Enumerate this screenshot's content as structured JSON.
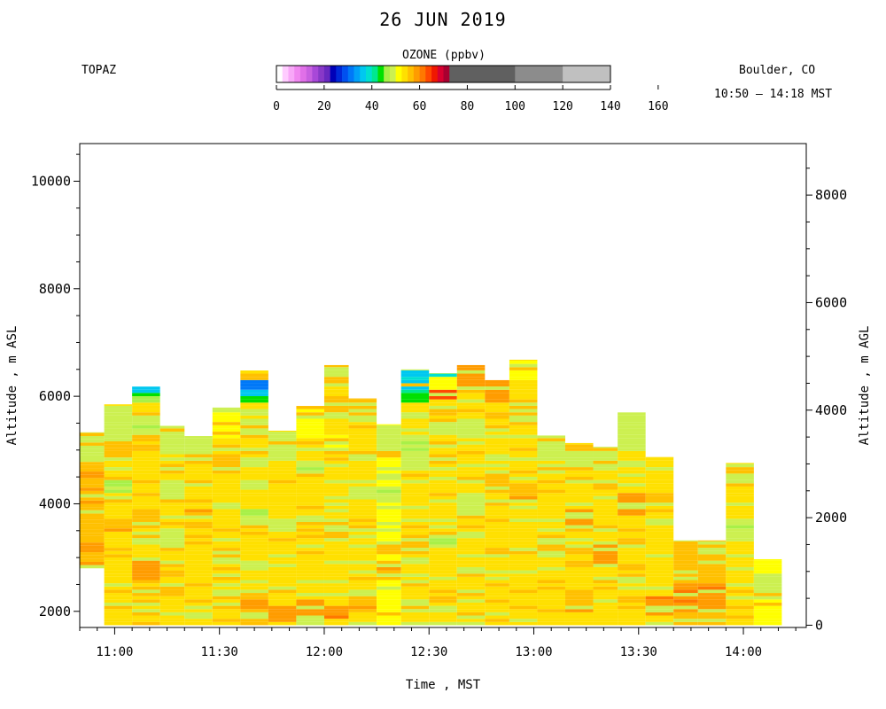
{
  "header": {
    "title": "26 JUN 2019",
    "site": "TOPAZ",
    "location": "Boulder, CO",
    "time_range": "10:50 – 14:18 MST"
  },
  "colorbar": {
    "title": "OZONE (ppbv)",
    "ticks": [
      "0",
      "20",
      "40",
      "60",
      "80",
      "100",
      "120",
      "140",
      "160"
    ],
    "bins": [
      {
        "lo": 0,
        "hi": 2.5,
        "color": "#ffffff"
      },
      {
        "lo": 2.5,
        "hi": 5,
        "color": "#ffccff"
      },
      {
        "lo": 5,
        "hi": 7.5,
        "color": "#f8a8f8"
      },
      {
        "lo": 7.5,
        "hi": 10,
        "color": "#f088f0"
      },
      {
        "lo": 10,
        "hi": 12.5,
        "color": "#e070e8"
      },
      {
        "lo": 12.5,
        "hi": 15,
        "color": "#c860e0"
      },
      {
        "lo": 15,
        "hi": 17.5,
        "color": "#a848d8"
      },
      {
        "lo": 17.5,
        "hi": 20,
        "color": "#8838c8"
      },
      {
        "lo": 20,
        "hi": 22.5,
        "color": "#6828c0"
      },
      {
        "lo": 22.5,
        "hi": 25,
        "color": "#0000b8"
      },
      {
        "lo": 25,
        "hi": 27.5,
        "color": "#0028d8"
      },
      {
        "lo": 27.5,
        "hi": 30,
        "color": "#0050f0"
      },
      {
        "lo": 30,
        "hi": 32.5,
        "color": "#0078f8"
      },
      {
        "lo": 32.5,
        "hi": 35,
        "color": "#00a0f8"
      },
      {
        "lo": 35,
        "hi": 37.5,
        "color": "#00c8f0"
      },
      {
        "lo": 37.5,
        "hi": 40,
        "color": "#00e0d0"
      },
      {
        "lo": 40,
        "hi": 42.5,
        "color": "#00e890"
      },
      {
        "lo": 42.5,
        "hi": 45,
        "color": "#00e000"
      },
      {
        "lo": 45,
        "hi": 47.5,
        "color": "#a8f048"
      },
      {
        "lo": 47.5,
        "hi": 50,
        "color": "#ccf050"
      },
      {
        "lo": 50,
        "hi": 52.5,
        "color": "#ffff00"
      },
      {
        "lo": 52.5,
        "hi": 55,
        "color": "#ffe000"
      },
      {
        "lo": 55,
        "hi": 57.5,
        "color": "#ffc000"
      },
      {
        "lo": 57.5,
        "hi": 60,
        "color": "#ff9c00"
      },
      {
        "lo": 60,
        "hi": 62.5,
        "color": "#ff7800"
      },
      {
        "lo": 62.5,
        "hi": 65,
        "color": "#ff4800"
      },
      {
        "lo": 65,
        "hi": 67.5,
        "color": "#f01800"
      },
      {
        "lo": 67.5,
        "hi": 70,
        "color": "#d80030"
      },
      {
        "lo": 70,
        "hi": 72.5,
        "color": "#a80030"
      },
      {
        "lo": 72.5,
        "hi": 100,
        "color": "#606060"
      },
      {
        "lo": 100,
        "hi": 120,
        "color": "#8c8c8c"
      },
      {
        "lo": 120,
        "hi": 140,
        "color": "#c0c0c0"
      }
    ]
  },
  "chart_data": {
    "type": "heatmap",
    "title": "26 JUN 2019",
    "xlabel": "Time , MST",
    "ylabel_left": "Altitude , m ASL",
    "ylabel_right": "Altitude , m AGL",
    "x_ticks": [
      "11:00",
      "11:30",
      "12:00",
      "12:30",
      "13:00",
      "13:30",
      "14:00"
    ],
    "x_tick_values": [
      "11:00",
      "11:30",
      "12:00",
      "12:30",
      "13:00",
      "13:30",
      "14:00"
    ],
    "y_left_ticks": [
      2000,
      4000,
      6000,
      8000,
      10000
    ],
    "y_right_ticks": [
      0,
      2000,
      4000,
      6000,
      8000
    ],
    "xlim": [
      "10:50",
      "14:18"
    ],
    "ylim_asl": [
      1700,
      10700
    ],
    "surface_altitude_asl": 1742,
    "profiles": [
      {
        "start": "10:50",
        "end": "10:57",
        "bottom": 2800,
        "top": 5330,
        "base_ozone": 55.5,
        "layers": [
          [
            4800,
            5330,
            49
          ],
          [
            3700,
            3850,
            57
          ],
          [
            3100,
            3300,
            57.5
          ]
        ]
      },
      {
        "start": "10:57",
        "end": "11:05",
        "bottom": 1742,
        "top": 5850,
        "base_ozone": 53,
        "layers": [
          [
            4900,
            5850,
            49
          ],
          [
            4200,
            4500,
            48.5
          ],
          [
            3500,
            3700,
            56
          ]
        ]
      },
      {
        "start": "11:05",
        "end": "11:13",
        "bottom": 1742,
        "top": 6180,
        "base_ozone": 52.5,
        "layers": [
          [
            6080,
            6180,
            37
          ],
          [
            5980,
            6080,
            43.5
          ],
          [
            5900,
            5980,
            47
          ],
          [
            5200,
            5700,
            48.5
          ],
          [
            2600,
            3000,
            58
          ]
        ]
      },
      {
        "start": "11:13",
        "end": "11:20",
        "bottom": 1742,
        "top": 5450,
        "base_ozone": 53,
        "layers": [
          [
            4900,
            5450,
            49
          ],
          [
            4100,
            4400,
            48
          ],
          [
            2300,
            2500,
            56.5
          ]
        ]
      },
      {
        "start": "11:20",
        "end": "11:28",
        "bottom": 1742,
        "top": 5260,
        "base_ozone": 52.5,
        "layers": [
          [
            4800,
            5260,
            49
          ],
          [
            3700,
            3900,
            56
          ]
        ]
      },
      {
        "start": "11:28",
        "end": "11:36",
        "bottom": 1742,
        "top": 5790,
        "base_ozone": 53,
        "layers": [
          [
            5200,
            5790,
            51
          ],
          [
            4600,
            4900,
            57
          ],
          [
            2900,
            3200,
            57
          ]
        ]
      },
      {
        "start": "11:36",
        "end": "11:44",
        "bottom": 1742,
        "top": 6480,
        "base_ozone": 53,
        "layers": [
          [
            6320,
            6400,
            34
          ],
          [
            6150,
            6320,
            31
          ],
          [
            6020,
            6150,
            35
          ],
          [
            5900,
            6020,
            43
          ],
          [
            5200,
            5600,
            49
          ],
          [
            3600,
            3900,
            48
          ],
          [
            2000,
            2400,
            57
          ]
        ]
      },
      {
        "start": "11:44",
        "end": "11:52",
        "bottom": 1742,
        "top": 5360,
        "base_ozone": 53,
        "layers": [
          [
            4800,
            5360,
            49
          ],
          [
            3500,
            3700,
            48.5
          ],
          [
            1800,
            2100,
            57.5
          ]
        ]
      },
      {
        "start": "11:52",
        "end": "12:00",
        "bottom": 1742,
        "top": 5820,
        "base_ozone": 53,
        "layers": [
          [
            5200,
            5820,
            50
          ],
          [
            4500,
            4800,
            48.5
          ],
          [
            1900,
            2200,
            57.5
          ]
        ]
      },
      {
        "start": "12:00",
        "end": "12:07",
        "bottom": 1742,
        "top": 6580,
        "base_ozone": 52.5,
        "layers": [
          [
            6350,
            6580,
            49
          ],
          [
            5700,
            6000,
            56.5
          ],
          [
            5000,
            5300,
            50
          ],
          [
            3300,
            3700,
            49
          ],
          [
            1850,
            2100,
            58
          ]
        ]
      },
      {
        "start": "12:07",
        "end": "12:15",
        "bottom": 1742,
        "top": 5960,
        "base_ozone": 53,
        "layers": [
          [
            5500,
            5960,
            49
          ],
          [
            4800,
            5000,
            49
          ],
          [
            2000,
            2400,
            57
          ]
        ]
      },
      {
        "start": "12:15",
        "end": "12:22",
        "bottom": 1742,
        "top": 5480,
        "base_ozone": 52,
        "layers": [
          [
            4900,
            5480,
            49
          ],
          [
            4000,
            4300,
            48.5
          ],
          [
            2600,
            2900,
            56
          ]
        ]
      },
      {
        "start": "12:22",
        "end": "12:30",
        "bottom": 1742,
        "top": 6500,
        "base_ozone": 52.5,
        "layers": [
          [
            6280,
            6500,
            38
          ],
          [
            6150,
            6280,
            35
          ],
          [
            6050,
            6150,
            42
          ],
          [
            5900,
            6050,
            44
          ],
          [
            4600,
            5300,
            48.5
          ],
          [
            3100,
            3300,
            56.5
          ]
        ]
      },
      {
        "start": "12:30",
        "end": "12:38",
        "bottom": 1742,
        "top": 6430,
        "base_ozone": 53,
        "layers": [
          [
            6350,
            6430,
            38
          ],
          [
            6100,
            6350,
            52
          ],
          [
            5950,
            6100,
            62.5
          ],
          [
            5300,
            5600,
            49
          ],
          [
            3200,
            3500,
            48.5
          ]
        ]
      },
      {
        "start": "12:38",
        "end": "12:46",
        "bottom": 1742,
        "top": 6580,
        "base_ozone": 53,
        "layers": [
          [
            6100,
            6580,
            57.5
          ],
          [
            5200,
            5600,
            49
          ],
          [
            3800,
            4200,
            48.5
          ]
        ]
      },
      {
        "start": "12:46",
        "end": "12:53",
        "bottom": 1742,
        "top": 6300,
        "base_ozone": 53,
        "layers": [
          [
            5900,
            6300,
            57.5
          ],
          [
            4300,
            4600,
            56
          ]
        ]
      },
      {
        "start": "12:53",
        "end": "13:01",
        "bottom": 1742,
        "top": 6680,
        "base_ozone": 53,
        "layers": [
          [
            6300,
            6680,
            50
          ],
          [
            5500,
            5900,
            49
          ],
          [
            4100,
            4400,
            56
          ]
        ]
      },
      {
        "start": "13:01",
        "end": "13:09",
        "bottom": 1742,
        "top": 5270,
        "base_ozone": 53,
        "layers": [
          [
            4800,
            5270,
            49
          ],
          [
            3000,
            3300,
            57
          ]
        ]
      },
      {
        "start": "13:09",
        "end": "13:17",
        "bottom": 1742,
        "top": 5130,
        "base_ozone": 53.5,
        "layers": [
          [
            4600,
            5130,
            49
          ],
          [
            3600,
            3900,
            57.5
          ],
          [
            2000,
            2400,
            56.5
          ]
        ]
      },
      {
        "start": "13:17",
        "end": "13:24",
        "bottom": 1742,
        "top": 5060,
        "base_ozone": 53.5,
        "layers": [
          [
            4600,
            5060,
            49
          ],
          [
            2900,
            3300,
            57.5
          ]
        ]
      },
      {
        "start": "13:24",
        "end": "13:32",
        "bottom": 1742,
        "top": 5700,
        "base_ozone": 53,
        "layers": [
          [
            5000,
            5700,
            49
          ],
          [
            3800,
            4200,
            57.5
          ]
        ]
      },
      {
        "start": "13:32",
        "end": "13:40",
        "bottom": 1742,
        "top": 4870,
        "base_ozone": 54,
        "layers": [
          [
            4400,
            4870,
            53
          ],
          [
            1900,
            2300,
            59
          ]
        ]
      },
      {
        "start": "13:40",
        "end": "13:47",
        "bottom": 1742,
        "top": 3320,
        "base_ozone": 56,
        "layers": [
          [
            2000,
            2400,
            59.5
          ]
        ]
      },
      {
        "start": "13:47",
        "end": "13:55",
        "bottom": 1742,
        "top": 3320,
        "base_ozone": 55,
        "layers": [
          [
            3000,
            3320,
            49
          ],
          [
            2000,
            2500,
            59
          ]
        ]
      },
      {
        "start": "13:55",
        "end": "14:03",
        "bottom": 1742,
        "top": 4760,
        "base_ozone": 52.5,
        "layers": [
          [
            4400,
            4760,
            49
          ],
          [
            3300,
            3700,
            48
          ]
        ]
      },
      {
        "start": "14:03",
        "end": "14:11",
        "bottom": 1742,
        "top": 2970,
        "base_ozone": 52,
        "layers": [
          [
            2200,
            2700,
            49
          ]
        ]
      }
    ]
  }
}
